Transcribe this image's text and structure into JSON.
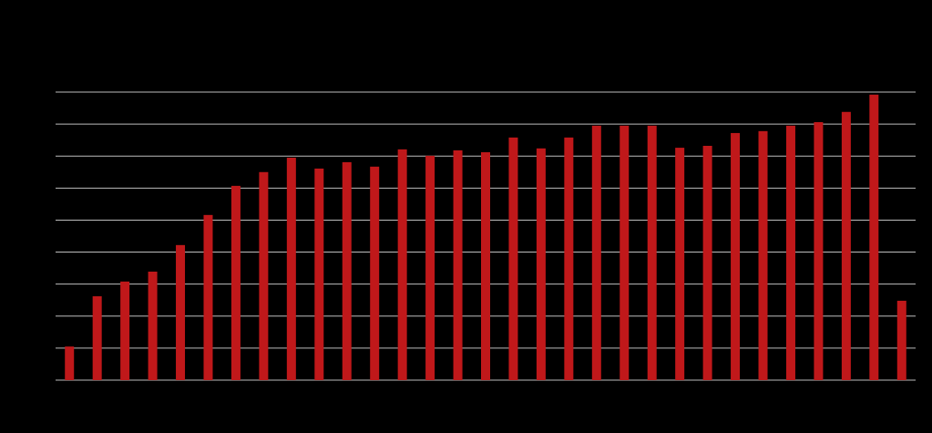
{
  "chart_data": {
    "type": "bar",
    "categories": [
      null,
      null,
      null,
      null,
      null,
      null,
      null,
      null,
      null,
      null,
      null,
      null,
      null,
      null,
      null,
      null,
      null,
      null,
      null,
      null,
      null,
      null,
      null,
      null,
      null,
      null,
      null,
      null,
      null,
      null,
      null
    ],
    "values": [
      1.05,
      2.62,
      3.08,
      3.39,
      4.22,
      5.16,
      6.07,
      6.5,
      6.95,
      6.61,
      6.81,
      6.67,
      7.21,
      7.01,
      7.18,
      7.12,
      7.58,
      7.24,
      7.58,
      7.95,
      7.95,
      7.95,
      7.26,
      7.32,
      7.72,
      7.78,
      7.95,
      8.06,
      8.38,
      8.92,
      2.48
    ],
    "color": "#c0181a",
    "ylim": [
      0,
      9
    ],
    "yticks": [
      0,
      1,
      2,
      3,
      4,
      5,
      6,
      7,
      8,
      9
    ],
    "grid": true
  }
}
